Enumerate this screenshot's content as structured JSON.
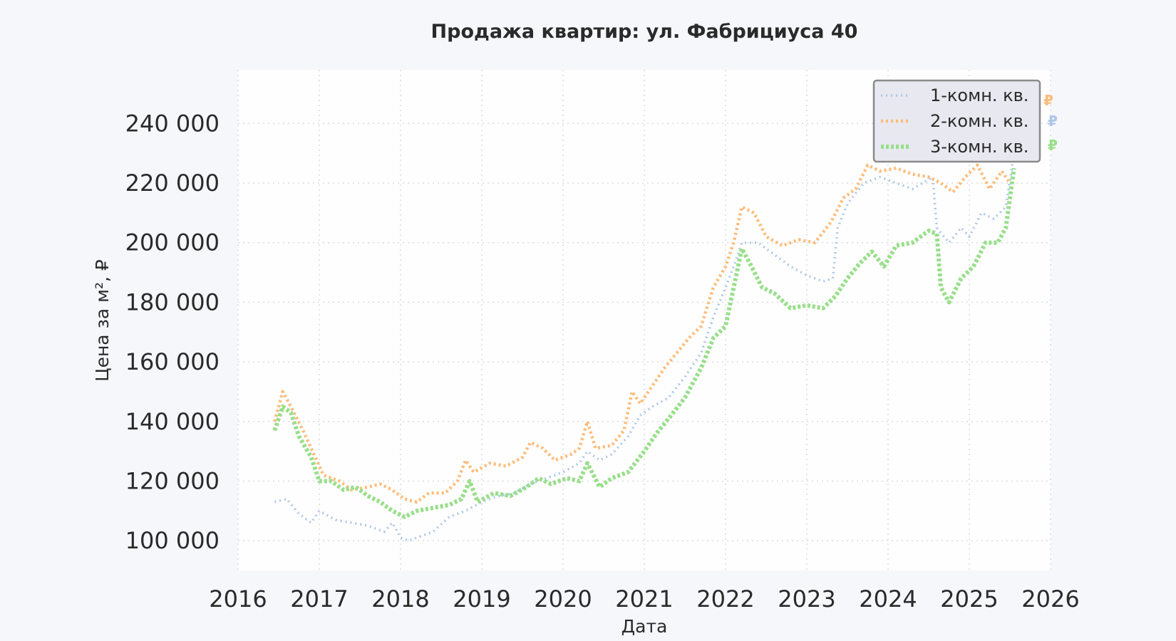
{
  "chart_data": {
    "type": "line",
    "title": "Продажа квартир: ул. Фабрициуса 40",
    "xlabel": "Дата",
    "ylabel": "Цена за м², ₽",
    "xlim": [
      2016,
      2026
    ],
    "ylim": [
      90000,
      258000
    ],
    "x_ticks": [
      "2016",
      "2017",
      "2018",
      "2019",
      "2020",
      "2021",
      "2022",
      "2023",
      "2024",
      "2025",
      "2026"
    ],
    "y_ticks": [
      "100 000",
      "120 000",
      "140 000",
      "160 000",
      "180 000",
      "200 000",
      "220 000",
      "240 000"
    ],
    "grid": true,
    "legend_position": "top-right",
    "end_marker_label": "₽",
    "series": [
      {
        "name": "1-комн. кв.",
        "color": "#aec7e8",
        "points": [
          [
            2016.45,
            113000
          ],
          [
            2016.6,
            114000
          ],
          [
            2016.75,
            109000
          ],
          [
            2016.9,
            106000
          ],
          [
            2017.0,
            110000
          ],
          [
            2017.2,
            107000
          ],
          [
            2017.4,
            106000
          ],
          [
            2017.6,
            105000
          ],
          [
            2017.8,
            103000
          ],
          [
            2017.9,
            106000
          ],
          [
            2018.0,
            101000
          ],
          [
            2018.1,
            100000
          ],
          [
            2018.2,
            101000
          ],
          [
            2018.4,
            103000
          ],
          [
            2018.6,
            108000
          ],
          [
            2018.8,
            110000
          ],
          [
            2019.0,
            113000
          ],
          [
            2019.2,
            115000
          ],
          [
            2019.4,
            116000
          ],
          [
            2019.6,
            119000
          ],
          [
            2019.8,
            121000
          ],
          [
            2020.0,
            123000
          ],
          [
            2020.2,
            126000
          ],
          [
            2020.3,
            130000
          ],
          [
            2020.45,
            127000
          ],
          [
            2020.6,
            129000
          ],
          [
            2020.8,
            135000
          ],
          [
            2020.95,
            142000
          ],
          [
            2021.1,
            145000
          ],
          [
            2021.3,
            148000
          ],
          [
            2021.5,
            155000
          ],
          [
            2021.7,
            163000
          ],
          [
            2021.85,
            175000
          ],
          [
            2022.0,
            185000
          ],
          [
            2022.1,
            192000
          ],
          [
            2022.2,
            200000
          ],
          [
            2022.4,
            200000
          ],
          [
            2022.6,
            196000
          ],
          [
            2022.8,
            192000
          ],
          [
            2023.0,
            189000
          ],
          [
            2023.2,
            187000
          ],
          [
            2023.32,
            188000
          ],
          [
            2023.38,
            205000
          ],
          [
            2023.5,
            213000
          ],
          [
            2023.7,
            220000
          ],
          [
            2023.9,
            222000
          ],
          [
            2024.1,
            220000
          ],
          [
            2024.3,
            218000
          ],
          [
            2024.55,
            222000
          ],
          [
            2024.6,
            205000
          ],
          [
            2024.75,
            200000
          ],
          [
            2024.9,
            205000
          ],
          [
            2025.0,
            202000
          ],
          [
            2025.15,
            210000
          ],
          [
            2025.3,
            208000
          ],
          [
            2025.45,
            212000
          ],
          [
            2025.55,
            230000
          ]
        ]
      },
      {
        "name": "2-комн. кв.",
        "color": "#ffbb78",
        "points": [
          [
            2016.45,
            140000
          ],
          [
            2016.55,
            150000
          ],
          [
            2016.65,
            145000
          ],
          [
            2016.8,
            137000
          ],
          [
            2016.95,
            128000
          ],
          [
            2017.05,
            122000
          ],
          [
            2017.25,
            120000
          ],
          [
            2017.4,
            117000
          ],
          [
            2017.6,
            118000
          ],
          [
            2017.75,
            119000
          ],
          [
            2017.9,
            117000
          ],
          [
            2018.05,
            114000
          ],
          [
            2018.2,
            113000
          ],
          [
            2018.35,
            116000
          ],
          [
            2018.55,
            116000
          ],
          [
            2018.7,
            120000
          ],
          [
            2018.8,
            127000
          ],
          [
            2018.9,
            123000
          ],
          [
            2019.1,
            126000
          ],
          [
            2019.3,
            125000
          ],
          [
            2019.5,
            128000
          ],
          [
            2019.6,
            133000
          ],
          [
            2019.75,
            131000
          ],
          [
            2019.9,
            127000
          ],
          [
            2020.1,
            129000
          ],
          [
            2020.2,
            131000
          ],
          [
            2020.3,
            140000
          ],
          [
            2020.4,
            131000
          ],
          [
            2020.6,
            132000
          ],
          [
            2020.75,
            137000
          ],
          [
            2020.85,
            150000
          ],
          [
            2020.95,
            146000
          ],
          [
            2021.1,
            152000
          ],
          [
            2021.25,
            158000
          ],
          [
            2021.4,
            163000
          ],
          [
            2021.55,
            168000
          ],
          [
            2021.7,
            172000
          ],
          [
            2021.85,
            185000
          ],
          [
            2022.0,
            192000
          ],
          [
            2022.1,
            200000
          ],
          [
            2022.2,
            212000
          ],
          [
            2022.35,
            210000
          ],
          [
            2022.5,
            202000
          ],
          [
            2022.7,
            199000
          ],
          [
            2022.9,
            201000
          ],
          [
            2023.1,
            200000
          ],
          [
            2023.3,
            207000
          ],
          [
            2023.45,
            215000
          ],
          [
            2023.6,
            218000
          ],
          [
            2023.75,
            226000
          ],
          [
            2023.9,
            224000
          ],
          [
            2024.1,
            225000
          ],
          [
            2024.3,
            223000
          ],
          [
            2024.5,
            222000
          ],
          [
            2024.65,
            220000
          ],
          [
            2024.8,
            217000
          ],
          [
            2024.95,
            222000
          ],
          [
            2025.1,
            226000
          ],
          [
            2025.25,
            218000
          ],
          [
            2025.4,
            224000
          ],
          [
            2025.5,
            220000
          ]
        ]
      },
      {
        "name": "3-комн. кв.",
        "color": "#98df8a",
        "points": [
          [
            2016.45,
            137000
          ],
          [
            2016.55,
            145000
          ],
          [
            2016.65,
            143000
          ],
          [
            2016.75,
            135000
          ],
          [
            2016.9,
            128000
          ],
          [
            2017.0,
            120000
          ],
          [
            2017.15,
            120000
          ],
          [
            2017.3,
            117000
          ],
          [
            2017.45,
            118000
          ],
          [
            2017.6,
            115000
          ],
          [
            2017.75,
            113000
          ],
          [
            2017.9,
            110000
          ],
          [
            2018.05,
            108000
          ],
          [
            2018.2,
            110000
          ],
          [
            2018.4,
            111000
          ],
          [
            2018.6,
            112000
          ],
          [
            2018.75,
            114000
          ],
          [
            2018.85,
            120000
          ],
          [
            2018.95,
            113000
          ],
          [
            2019.15,
            116000
          ],
          [
            2019.35,
            115000
          ],
          [
            2019.55,
            118000
          ],
          [
            2019.7,
            121000
          ],
          [
            2019.85,
            119000
          ],
          [
            2020.05,
            121000
          ],
          [
            2020.2,
            120000
          ],
          [
            2020.3,
            126000
          ],
          [
            2020.45,
            118000
          ],
          [
            2020.6,
            121000
          ],
          [
            2020.8,
            123000
          ],
          [
            2021.0,
            130000
          ],
          [
            2021.15,
            136000
          ],
          [
            2021.3,
            141000
          ],
          [
            2021.5,
            148000
          ],
          [
            2021.7,
            158000
          ],
          [
            2021.85,
            168000
          ],
          [
            2022.0,
            172000
          ],
          [
            2022.1,
            185000
          ],
          [
            2022.2,
            198000
          ],
          [
            2022.3,
            193000
          ],
          [
            2022.45,
            185000
          ],
          [
            2022.6,
            183000
          ],
          [
            2022.8,
            178000
          ],
          [
            2023.0,
            179000
          ],
          [
            2023.2,
            178000
          ],
          [
            2023.35,
            182000
          ],
          [
            2023.5,
            188000
          ],
          [
            2023.65,
            193000
          ],
          [
            2023.8,
            197000
          ],
          [
            2023.95,
            192000
          ],
          [
            2024.1,
            199000
          ],
          [
            2024.3,
            200000
          ],
          [
            2024.5,
            204000
          ],
          [
            2024.6,
            203000
          ],
          [
            2024.65,
            185000
          ],
          [
            2024.75,
            180000
          ],
          [
            2024.9,
            188000
          ],
          [
            2025.05,
            192000
          ],
          [
            2025.2,
            200000
          ],
          [
            2025.35,
            200000
          ],
          [
            2025.45,
            205000
          ],
          [
            2025.55,
            225000
          ]
        ]
      }
    ]
  }
}
